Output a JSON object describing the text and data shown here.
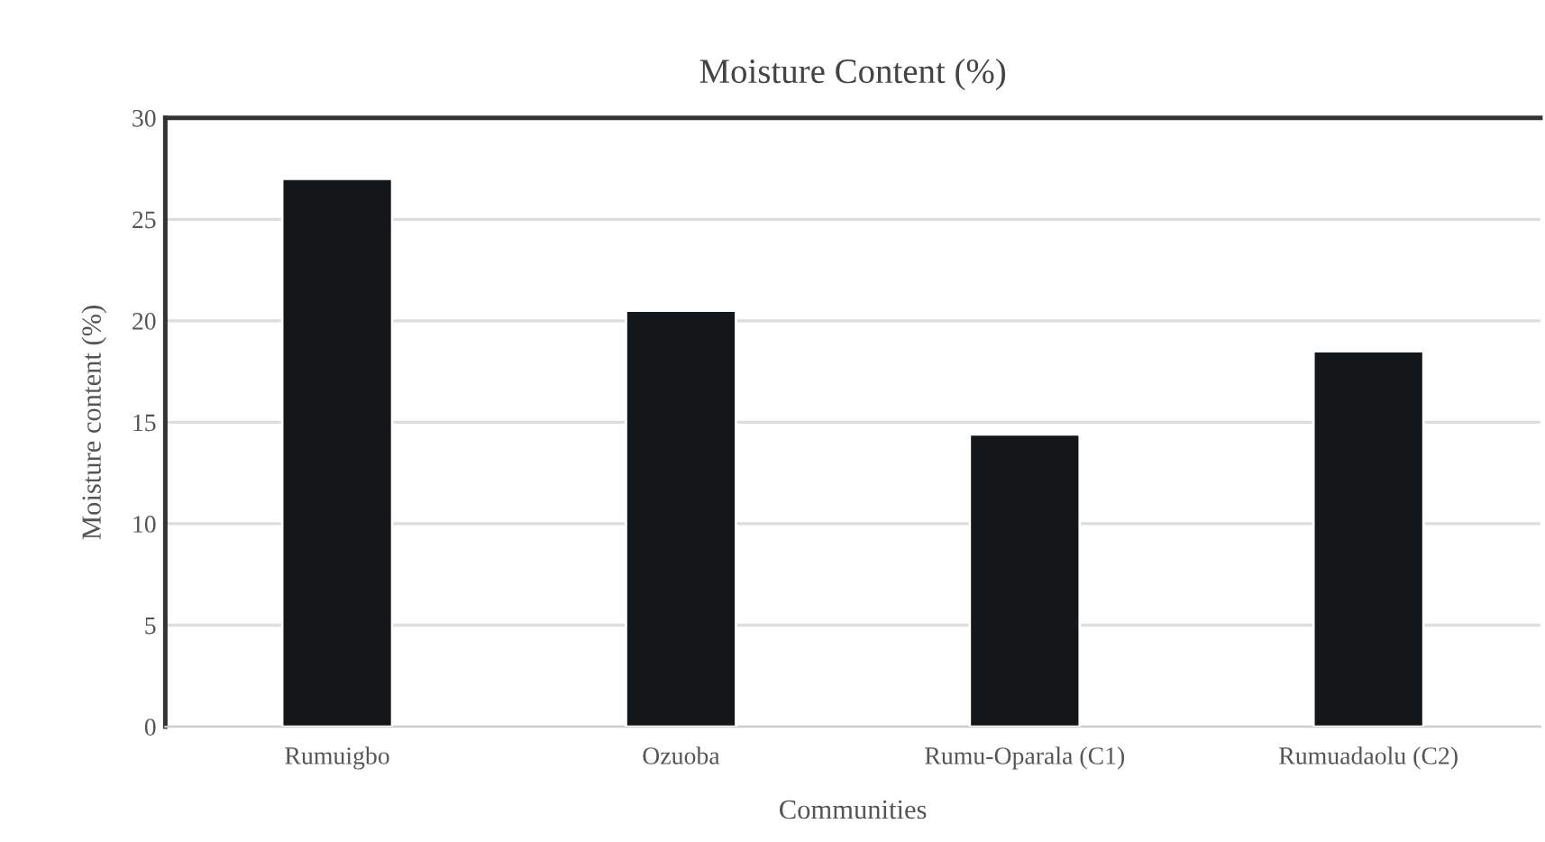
{
  "chart_data": {
    "type": "bar",
    "title": "Moisture Content (%)",
    "xlabel": "Communities",
    "ylabel": "Moisture content (%)",
    "categories": [
      "Rumuigbo",
      "Ozuoba",
      "Rumu-Oparala (C1)",
      "Rumuadaolu (C2)"
    ],
    "values": [
      27.0,
      20.5,
      14.4,
      18.5
    ],
    "color": "#141719",
    "ylim": [
      0,
      30
    ],
    "yticks": [
      0,
      5,
      10,
      15,
      20,
      25,
      30
    ],
    "grid": "y",
    "legend": false
  }
}
